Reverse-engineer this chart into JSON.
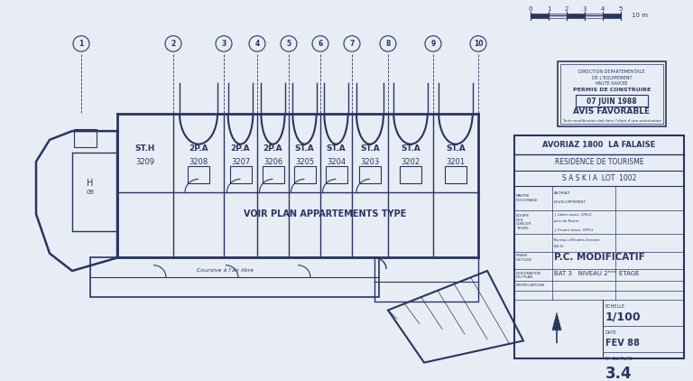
{
  "bg_color": "#e8edf5",
  "line_color": "#2a3560",
  "fig_w": 7.68,
  "fig_h": 4.22,
  "title_block": {
    "line1": "AVORIAZ 1800  LA FALAISE",
    "line2": "RESIDENCE DE TOURISME",
    "line3": "S A S K I A  LOT  1002",
    "echelle": "1/100",
    "date": "FEV 88",
    "plan_no": "3.4",
    "phase": "P.C.  MODIFICATIF",
    "bat_niveau": "BAT 3    NIVEAU 2ᵉᵐᵉ ETAGE"
  },
  "voir_plan_text": "VOIR PLAN APPARTEMENTS TYPE",
  "scale_ticks": [
    "0",
    "1",
    "2",
    "3",
    "4",
    "5"
  ],
  "apt_labels": [
    {
      "label": "ST.H",
      "num": "3209"
    },
    {
      "label": "2P.A",
      "num": "3208"
    },
    {
      "label": "2P.A",
      "num": "3207"
    },
    {
      "label": "2P.A",
      "num": "3206"
    },
    {
      "label": "ST.A",
      "num": "3205"
    },
    {
      "label": "ST.A",
      "num": "3204"
    },
    {
      "label": "ST.A",
      "num": "3203"
    },
    {
      "label": "ST.A",
      "num": "3202"
    },
    {
      "label": "ST.A",
      "num": "3201"
    }
  ],
  "col_numbers": [
    "10",
    "9",
    "8",
    "7",
    "6",
    "5",
    "4",
    "3",
    "2",
    "1"
  ]
}
